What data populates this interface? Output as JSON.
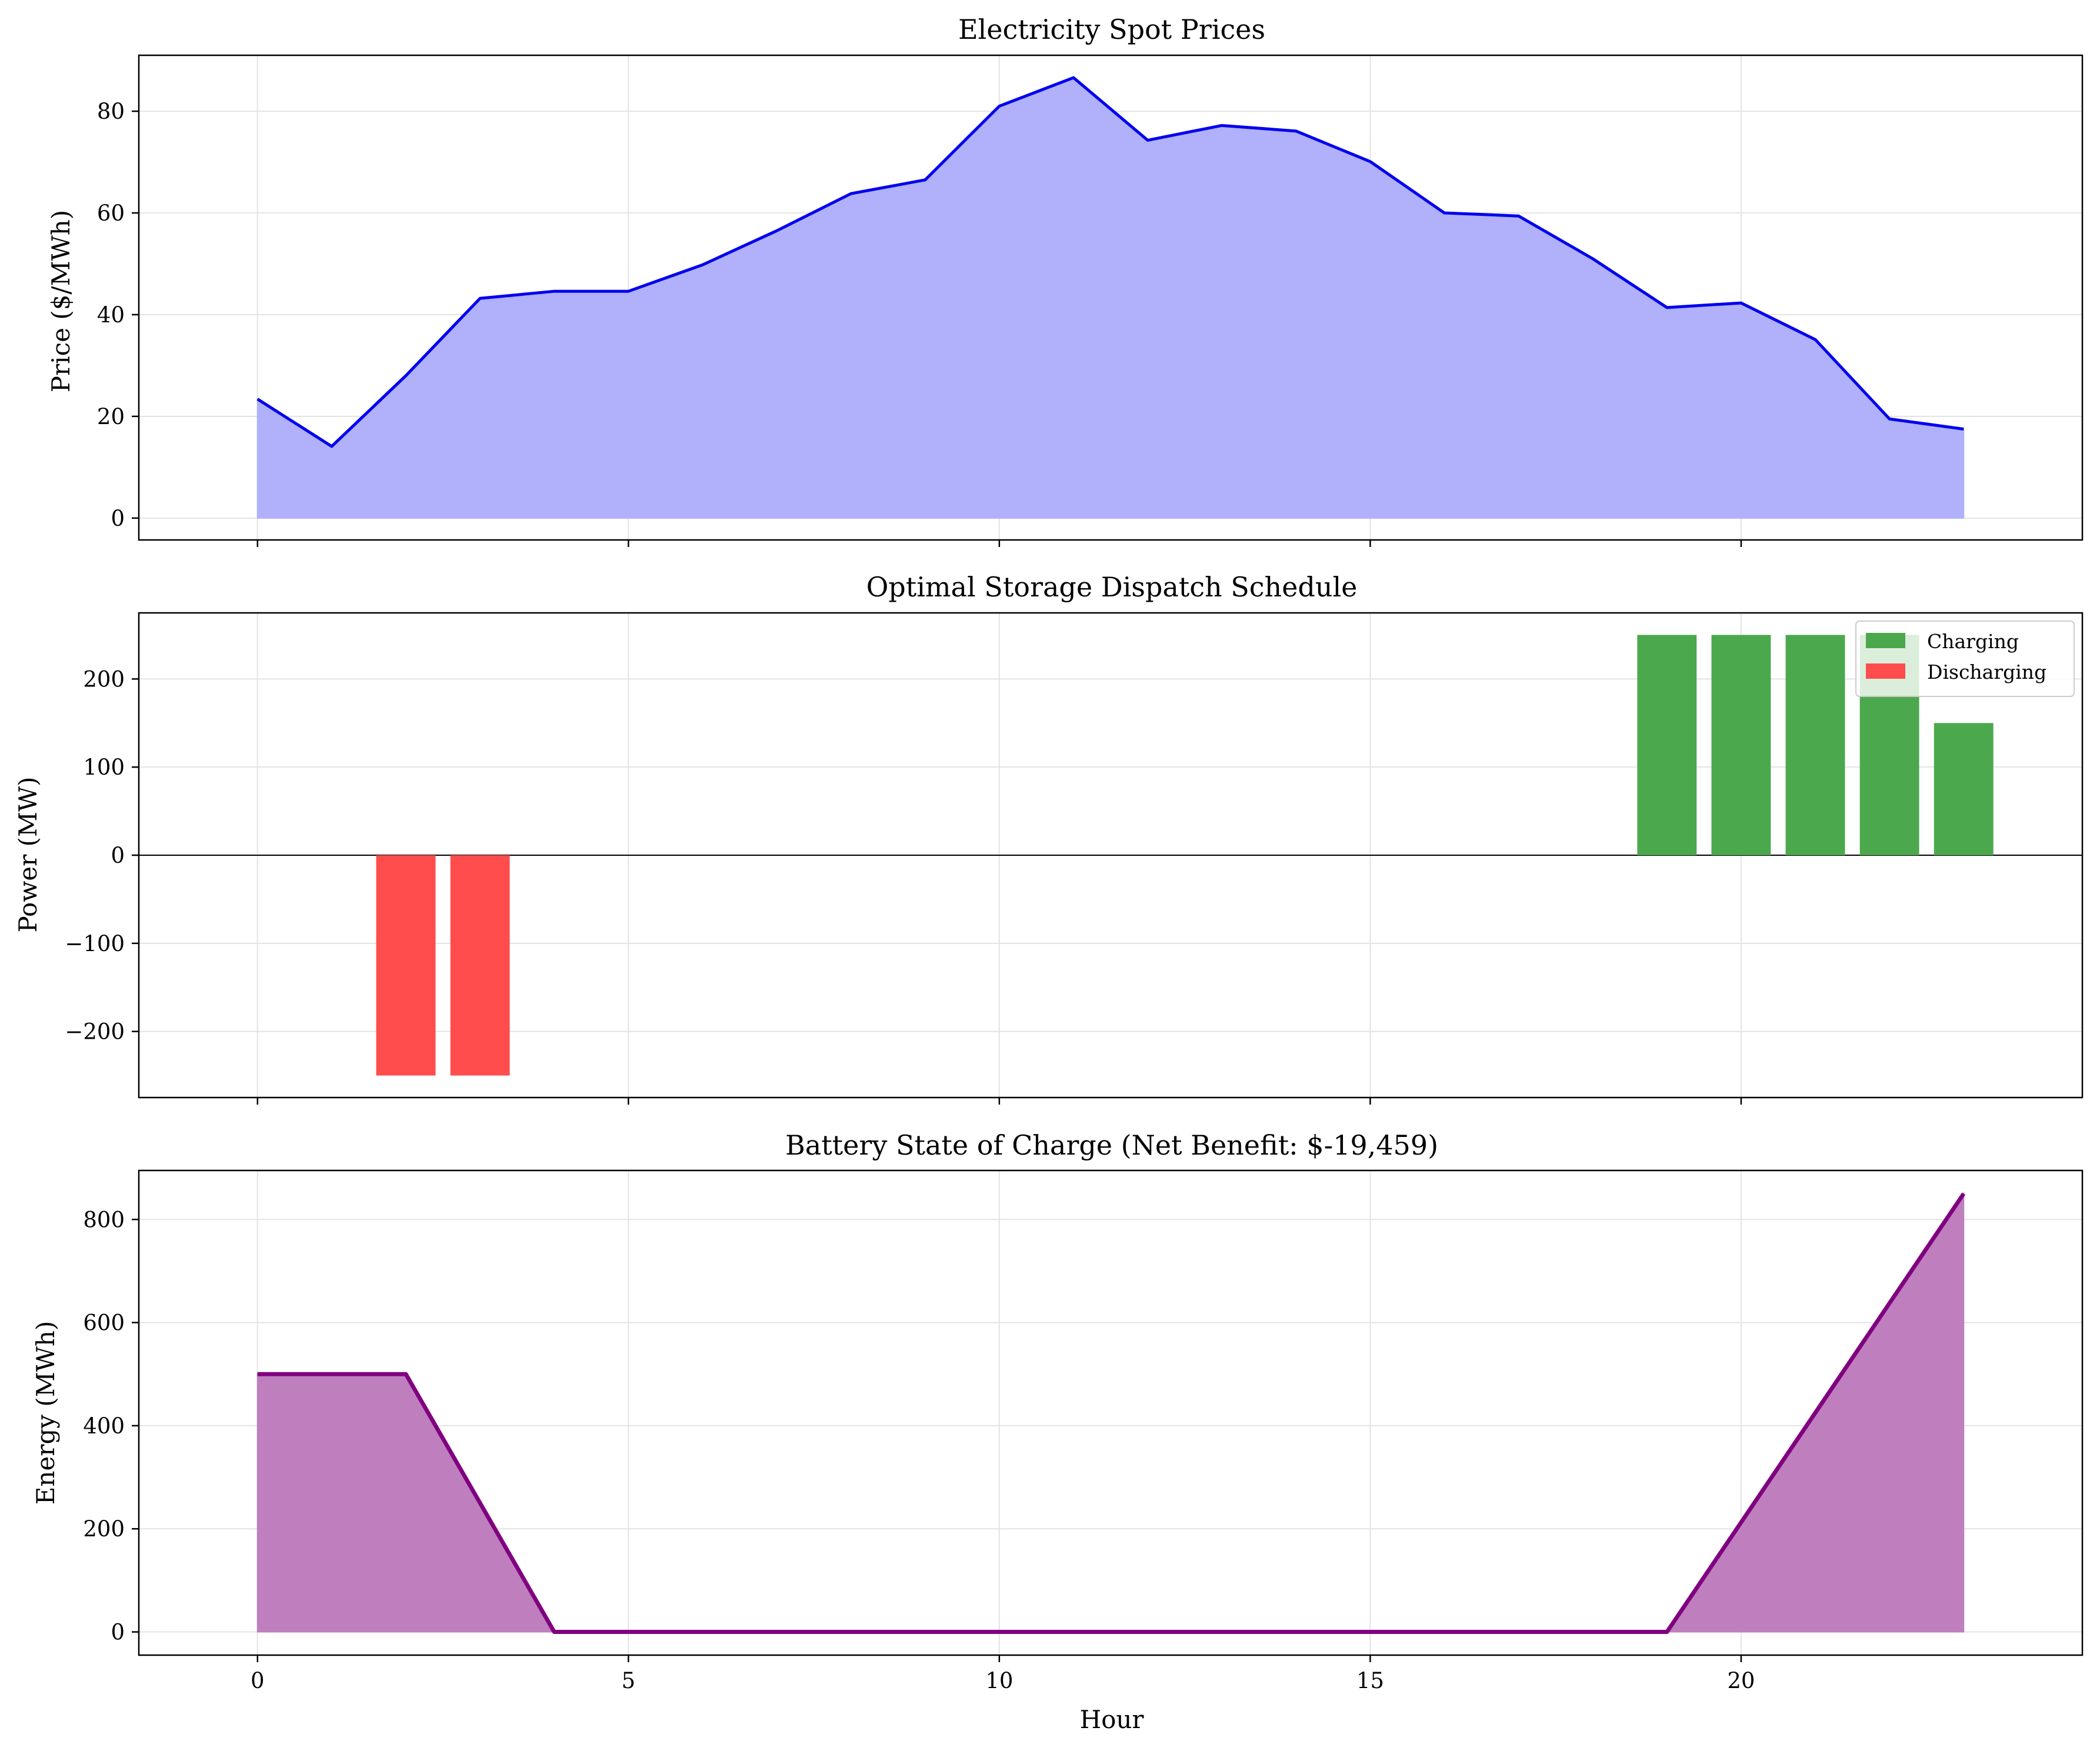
{
  "chart_data": [
    {
      "type": "area",
      "title": "Electricity Spot Prices",
      "xlabel": "",
      "ylabel": "Price ($/MWh)",
      "xlim": [
        -1.6,
        24.6
      ],
      "ylim": [
        -4.3,
        91.0
      ],
      "xticks": [
        0,
        5,
        10,
        15,
        20
      ],
      "show_xticklabels": false,
      "yticks": [
        0,
        20,
        40,
        60,
        80
      ],
      "yticklabels": [
        "0",
        "20",
        "40",
        "60",
        "80"
      ],
      "grid": true,
      "color": "#0000ee",
      "fill_color": "#b0b0fb",
      "x": [
        0,
        1,
        2,
        3,
        4,
        5,
        6,
        7,
        8,
        9,
        10,
        11,
        12,
        13,
        14,
        15,
        16,
        17,
        18,
        19,
        20,
        21,
        22,
        23
      ],
      "values": [
        23.4,
        14.1,
        28.0,
        43.2,
        44.6,
        44.6,
        49.8,
        56.5,
        63.8,
        66.5,
        81.0,
        86.6,
        74.3,
        77.2,
        76.1,
        70.1,
        60.0,
        59.4,
        51.0,
        41.4,
        42.3,
        35.1,
        19.5,
        17.5
      ]
    },
    {
      "type": "bar",
      "title": "Optimal Storage Dispatch Schedule",
      "xlabel": "",
      "ylabel": "Power (MW)",
      "xlim": [
        -1.6,
        24.6
      ],
      "ylim": [
        -275,
        275
      ],
      "xticks": [
        0,
        5,
        10,
        15,
        20
      ],
      "show_xticklabels": false,
      "yticks": [
        -200,
        -100,
        0,
        100,
        200
      ],
      "yticklabels": [
        "−200",
        "−100",
        "0",
        "100",
        "200"
      ],
      "grid": true,
      "legend_position": "top-right",
      "series": [
        {
          "name": "Charging",
          "color": "#4ca84c",
          "x": [
            19,
            20,
            21,
            22,
            23
          ],
          "values": [
            250,
            250,
            250,
            250,
            150
          ]
        },
        {
          "name": "Discharging",
          "color": "#ff4c4c",
          "x": [
            2,
            3
          ],
          "values": [
            -250,
            -250
          ]
        }
      ]
    },
    {
      "type": "area",
      "title": "Battery State of Charge (Net Benefit: $-19,459)",
      "xlabel": "Hour",
      "ylabel": "Energy (MWh)",
      "xlim": [
        -1.6,
        24.6
      ],
      "ylim": [
        -45,
        895
      ],
      "xticks": [
        0,
        5,
        10,
        15,
        20
      ],
      "xticklabels": [
        "0",
        "5",
        "10",
        "15",
        "20"
      ],
      "show_xticklabels": true,
      "yticks": [
        0,
        200,
        400,
        600,
        800
      ],
      "yticklabels": [
        "0",
        "200",
        "400",
        "600",
        "800"
      ],
      "grid": true,
      "color": "#800080",
      "fill_color": "#bf7fbf",
      "x": [
        0,
        1,
        2,
        3,
        4,
        5,
        6,
        7,
        8,
        9,
        10,
        11,
        12,
        13,
        14,
        15,
        16,
        17,
        18,
        19,
        20,
        21,
        22,
        23
      ],
      "values": [
        500,
        500,
        500,
        250,
        0,
        0,
        0,
        0,
        0,
        0,
        0,
        0,
        0,
        0,
        0,
        0,
        0,
        0,
        0,
        0,
        212.5,
        425,
        637.5,
        850
      ]
    }
  ]
}
